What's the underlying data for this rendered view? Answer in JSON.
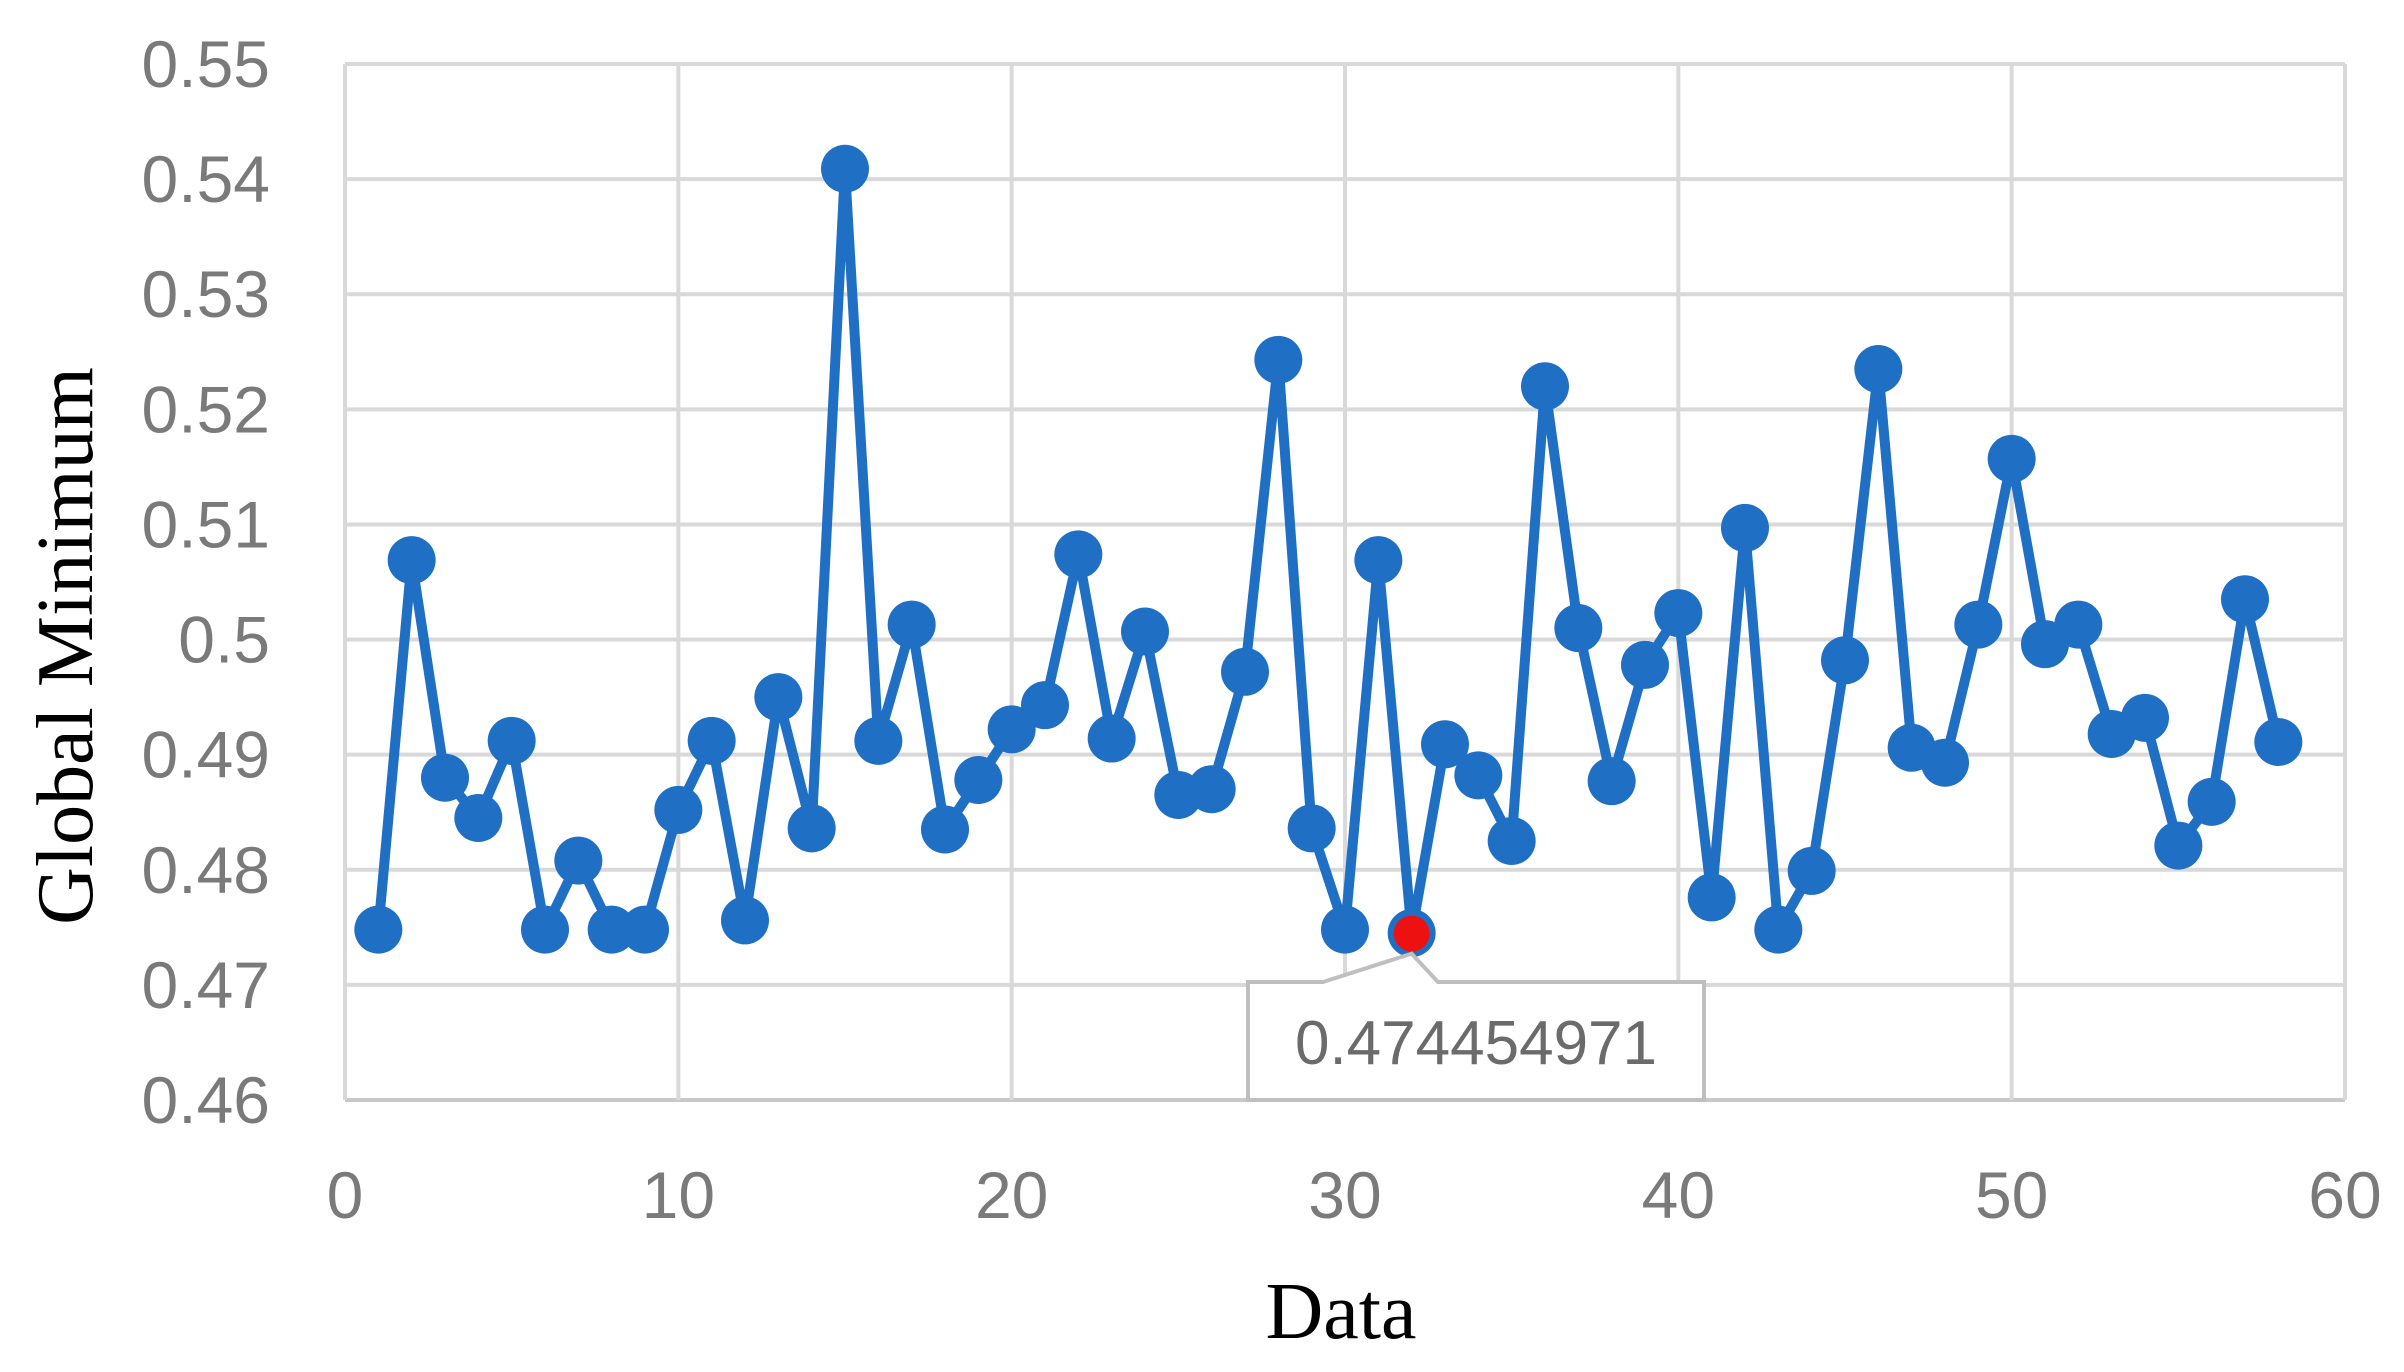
{
  "chart_data": {
    "type": "line",
    "xlabel": "Data",
    "ylabel": "Global Minimum",
    "xlim": [
      0,
      60
    ],
    "ylim": [
      0.46,
      0.55
    ],
    "x_ticks": [
      "0",
      "10",
      "20",
      "30",
      "40",
      "50",
      "60"
    ],
    "y_ticks": [
      "0.46",
      "0.47",
      "0.48",
      "0.49",
      "0.5",
      "0.51",
      "0.52",
      "0.53",
      "0.54",
      "0.55"
    ],
    "grid": true,
    "legend": "none",
    "series": [
      {
        "color": "#1f6fc5",
        "marker": "circle",
        "x": [
          1,
          2,
          3,
          4,
          5,
          6,
          7,
          8,
          9,
          10,
          11,
          12,
          13,
          14,
          15,
          16,
          17,
          18,
          19,
          20,
          21,
          22,
          23,
          24,
          25,
          26,
          27,
          28,
          29,
          30,
          31,
          32,
          33,
          34,
          35,
          36,
          37,
          38,
          39,
          40,
          41,
          42,
          43,
          44,
          45,
          46,
          47,
          48,
          49,
          50,
          51,
          52,
          53,
          54,
          55,
          56,
          57,
          58
        ],
        "y": [
          0.4748,
          0.5069,
          0.488,
          0.4845,
          0.4912,
          0.4748,
          0.4808,
          0.4748,
          0.4748,
          0.4852,
          0.4912,
          0.4756,
          0.495,
          0.4836,
          0.5409,
          0.4912,
          0.5013,
          0.4835,
          0.4878,
          0.4922,
          0.4943,
          0.5074,
          0.4914,
          0.5007,
          0.4865,
          0.487,
          0.4972,
          0.5243,
          0.4836,
          0.4748,
          0.5069,
          0.4745,
          0.4909,
          0.4882,
          0.4825,
          0.522,
          0.501,
          0.4877,
          0.4978,
          0.5023,
          0.4776,
          0.5097,
          0.4748,
          0.4799,
          0.4982,
          0.5235,
          0.4906,
          0.4893,
          0.5013,
          0.5157,
          0.4996,
          0.5013,
          0.4918,
          0.4932,
          0.4821,
          0.4859,
          0.5035,
          0.4911
        ]
      }
    ],
    "highlight": {
      "x": 32,
      "y": 0.474454971,
      "color": "#ee1111",
      "label": "0.474454971"
    }
  }
}
